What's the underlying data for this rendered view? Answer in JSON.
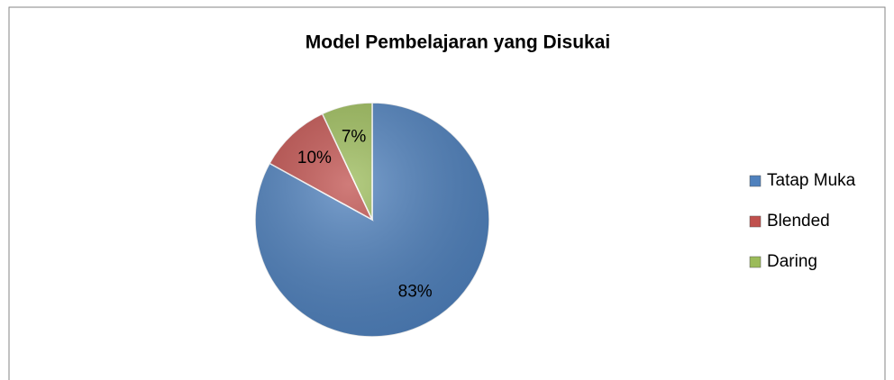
{
  "chart_data": {
    "type": "pie",
    "title": "Model Pembelajaran yang Disukai",
    "categories": [
      "Tatap Muka",
      "Blended",
      "Daring"
    ],
    "values": [
      83,
      10,
      7
    ],
    "value_labels": [
      "83%",
      "10%",
      "7%"
    ],
    "colors": [
      "#4f81bd",
      "#c0504d",
      "#9bbb59"
    ],
    "legend": "right"
  }
}
